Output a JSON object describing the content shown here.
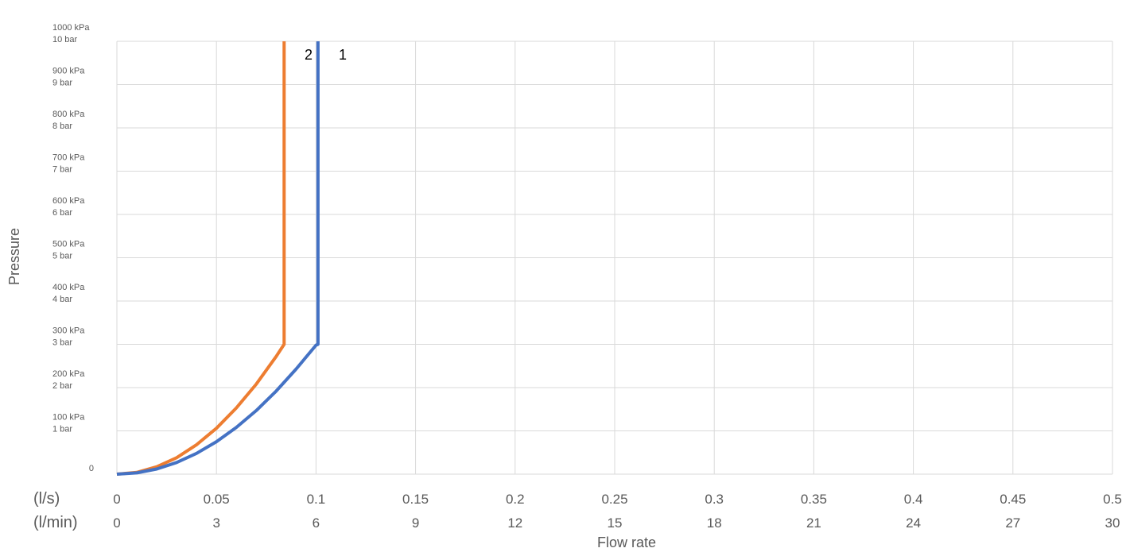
{
  "chart_data": {
    "type": "line",
    "title": "",
    "xlabel": "Flow rate",
    "ylabel": "Pressure",
    "x_unit_labels": [
      "(l/s)",
      "(l/min)"
    ],
    "x_ticks_ls": [
      "0",
      "0.05",
      "0.1",
      "0.15",
      "0.2",
      "0.25",
      "0.3",
      "0.35",
      "0.4",
      "0.45",
      "0.5"
    ],
    "x_ticks_lmin": [
      "0",
      "3",
      "6",
      "9",
      "12",
      "15",
      "18",
      "21",
      "24",
      "27",
      "30"
    ],
    "y_ticks": [
      {
        "value": 0,
        "kpa": "0",
        "bar": ""
      },
      {
        "value": 100,
        "kpa": "100 kPa",
        "bar": "1 bar"
      },
      {
        "value": 200,
        "kpa": "200 kPa",
        "bar": "2 bar"
      },
      {
        "value": 300,
        "kpa": "300 kPa",
        "bar": "3 bar"
      },
      {
        "value": 400,
        "kpa": "400 kPa",
        "bar": "4 bar"
      },
      {
        "value": 500,
        "kpa": "500 kPa",
        "bar": "5 bar"
      },
      {
        "value": 600,
        "kpa": "600 kPa",
        "bar": "6 bar"
      },
      {
        "value": 700,
        "kpa": "700 kPa",
        "bar": "7 bar"
      },
      {
        "value": 800,
        "kpa": "800 kPa",
        "bar": "8 bar"
      },
      {
        "value": 900,
        "kpa": "900 kPa",
        "bar": "9 bar"
      },
      {
        "value": 1000,
        "kpa": "1000 kPa",
        "bar": "10 bar"
      }
    ],
    "xlim": [
      0,
      0.5
    ],
    "ylim": [
      0,
      1000
    ],
    "grid": true,
    "series": [
      {
        "label": "1",
        "color": "#4472c4",
        "x": [
          0,
          0.01,
          0.02,
          0.03,
          0.04,
          0.05,
          0.06,
          0.07,
          0.08,
          0.09,
          0.1,
          0.101,
          0.101
        ],
        "y": [
          0,
          3,
          12,
          27,
          48,
          75,
          108,
          147,
          192,
          243,
          298,
          300,
          1000
        ]
      },
      {
        "label": "2",
        "color": "#ed7d31",
        "x": [
          0,
          0.01,
          0.02,
          0.03,
          0.04,
          0.05,
          0.06,
          0.07,
          0.08,
          0.084,
          0.084
        ],
        "y": [
          0,
          4,
          17,
          38,
          68,
          106,
          153,
          208,
          272,
          300,
          1000
        ]
      }
    ]
  }
}
